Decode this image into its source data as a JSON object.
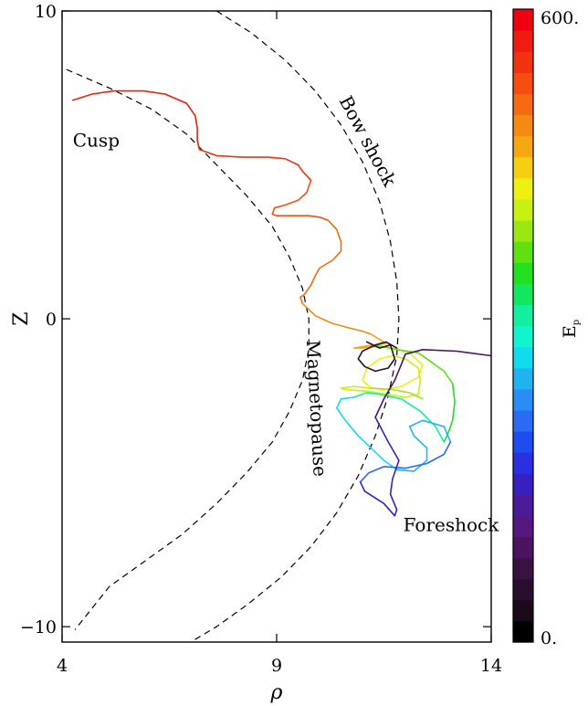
{
  "chart_data": {
    "type": "line",
    "xlabel": "ρ",
    "ylabel": "Z",
    "xlim": [
      4,
      14
    ],
    "ylim": [
      -10.5,
      10
    ],
    "xticks": [
      {
        "v": 4,
        "label": "4"
      },
      {
        "v": 9,
        "label": "9"
      },
      {
        "v": 14,
        "label": "14"
      }
    ],
    "yticks": [
      {
        "v": 10,
        "label": "10"
      },
      {
        "v": 0,
        "label": "0"
      },
      {
        "v": -10,
        "label": "−10"
      }
    ],
    "colorbar": {
      "label": "E",
      "label_subscript": "p",
      "min_label": "0.",
      "max_label": "600.",
      "colors": [
        "#000000",
        "#1a0a1a",
        "#2a0e2e",
        "#3a1242",
        "#4a1460",
        "#55187c",
        "#4a1a9a",
        "#3a1fc0",
        "#2a2fe0",
        "#1e4cf0",
        "#2a6af5",
        "#2a8cf5",
        "#1eb4f0",
        "#10dcf0",
        "#10f5d0",
        "#10f0a0",
        "#10e860",
        "#20e020",
        "#60e010",
        "#9ae810",
        "#c8f010",
        "#eef010",
        "#f5d010",
        "#f5a810",
        "#f58a10",
        "#f56c10",
        "#f54e10",
        "#f03210",
        "#f01c10",
        "#f00010"
      ]
    },
    "annotations": [
      {
        "text": "Cusp",
        "x": 4.25,
        "y": 5.6,
        "rotate": 0
      },
      {
        "text": "Bow shock",
        "x": 10.45,
        "y": 7.1,
        "rotate": 62
      },
      {
        "text": "Magnetopause",
        "x": 9.7,
        "y": -0.7,
        "rotate": 87
      },
      {
        "text": "Foreshock",
        "x": 11.95,
        "y": -6.9,
        "rotate": 0
      }
    ],
    "boundaries": [
      {
        "name": "Bow shock",
        "points": [
          [
            7.6,
            10
          ],
          [
            8.4,
            9.3
          ],
          [
            9.2,
            8.4
          ],
          [
            9.9,
            7.4
          ],
          [
            10.5,
            6.3
          ],
          [
            11.0,
            5.1
          ],
          [
            11.4,
            3.8
          ],
          [
            11.65,
            2.5
          ],
          [
            11.8,
            1.2
          ],
          [
            11.85,
            0
          ],
          [
            11.8,
            -1.2
          ],
          [
            11.6,
            -2.5
          ],
          [
            11.3,
            -3.8
          ],
          [
            10.9,
            -5.1
          ],
          [
            10.4,
            -6.3
          ],
          [
            9.8,
            -7.4
          ],
          [
            9.1,
            -8.4
          ],
          [
            8.3,
            -9.3
          ],
          [
            7.6,
            -10
          ],
          [
            7.0,
            -10.5
          ]
        ]
      },
      {
        "name": "Magnetopause",
        "points": [
          [
            4.1,
            8.1
          ],
          [
            5.1,
            7.5
          ],
          [
            6.1,
            6.8
          ],
          [
            6.9,
            6.0
          ],
          [
            7.6,
            5.0
          ],
          [
            8.3,
            4.0
          ],
          [
            8.9,
            3.0
          ],
          [
            9.3,
            2.0
          ],
          [
            9.6,
            1.0
          ],
          [
            9.75,
            0
          ],
          [
            9.75,
            -1.0
          ],
          [
            9.6,
            -2.0
          ],
          [
            9.3,
            -3.0
          ],
          [
            8.9,
            -4.0
          ],
          [
            8.3,
            -5.0
          ],
          [
            7.6,
            -6.0
          ],
          [
            6.8,
            -7.0
          ],
          [
            6.0,
            -7.8
          ],
          [
            5.1,
            -8.7
          ],
          [
            4.3,
            -10.1
          ]
        ]
      }
    ],
    "trajectory": [
      {
        "color": "#f01c10",
        "points": [
          [
            4.25,
            7.1
          ],
          [
            4.7,
            7.3
          ],
          [
            5.2,
            7.4
          ],
          [
            5.9,
            7.4
          ],
          [
            6.4,
            7.3
          ],
          [
            6.9,
            7.0
          ],
          [
            7.1,
            6.6
          ],
          [
            7.15,
            6.2
          ],
          [
            7.15,
            5.8
          ],
          [
            7.2,
            5.5
          ]
        ]
      },
      {
        "color": "#f03210",
        "points": [
          [
            7.2,
            5.5
          ],
          [
            7.6,
            5.3
          ],
          [
            8.2,
            5.25
          ],
          [
            8.8,
            5.25
          ],
          [
            9.2,
            5.2
          ],
          [
            9.5,
            5.0
          ],
          [
            9.6,
            4.8
          ],
          [
            9.8,
            4.5
          ]
        ]
      },
      {
        "color": "#f54e10",
        "points": [
          [
            9.8,
            4.5
          ],
          [
            9.7,
            4.1
          ],
          [
            9.5,
            3.85
          ],
          [
            9.2,
            3.7
          ],
          [
            8.95,
            3.6
          ],
          [
            8.9,
            3.4
          ],
          [
            9.0,
            3.35
          ],
          [
            9.35,
            3.35
          ],
          [
            9.75,
            3.35
          ],
          [
            10.0,
            3.3
          ],
          [
            10.2,
            3.2
          ]
        ]
      },
      {
        "color": "#f56c10",
        "points": [
          [
            10.2,
            3.2
          ],
          [
            10.4,
            2.9
          ],
          [
            10.5,
            2.5
          ],
          [
            10.5,
            2.2
          ],
          [
            10.3,
            1.9
          ],
          [
            10.0,
            1.65
          ],
          [
            9.9,
            1.4
          ],
          [
            9.8,
            1.1
          ],
          [
            9.65,
            0.8
          ],
          [
            9.55,
            0.7
          ],
          [
            9.6,
            0.5
          ]
        ]
      },
      {
        "color": "#f58a10",
        "points": [
          [
            9.6,
            0.5
          ],
          [
            9.9,
            0.1
          ],
          [
            10.3,
            -0.15
          ],
          [
            10.7,
            -0.3
          ],
          [
            11.0,
            -0.4
          ],
          [
            11.2,
            -0.5
          ]
        ]
      },
      {
        "color": "#f5a810",
        "points": [
          [
            11.2,
            -0.5
          ],
          [
            11.55,
            -0.8
          ],
          [
            11.3,
            -0.85
          ],
          [
            11.0,
            -0.9
          ],
          [
            10.8,
            -0.95
          ],
          [
            11.0,
            -0.95
          ],
          [
            11.3,
            -0.9
          ]
        ]
      },
      {
        "color": "#eef010",
        "points": [
          [
            11.3,
            -0.9
          ],
          [
            11.7,
            -0.95
          ],
          [
            12.1,
            -1.1
          ],
          [
            12.4,
            -1.5
          ],
          [
            12.3,
            -1.9
          ],
          [
            11.9,
            -2.2
          ],
          [
            11.5,
            -2.3
          ],
          [
            11.2,
            -2.25
          ],
          [
            11.0,
            -2.0
          ],
          [
            11.1,
            -1.6
          ],
          [
            11.4,
            -1.3
          ],
          [
            11.7,
            -1.2
          ]
        ]
      },
      {
        "color": "#c8f010",
        "points": [
          [
            11.7,
            -1.2
          ],
          [
            12.0,
            -1.3
          ],
          [
            12.3,
            -1.6
          ],
          [
            12.35,
            -2.0
          ],
          [
            12.3,
            -2.45
          ],
          [
            12.0,
            -2.55
          ],
          [
            11.6,
            -2.45
          ],
          [
            11.1,
            -2.35
          ],
          [
            10.6,
            -2.3
          ],
          [
            10.5,
            -2.25
          ],
          [
            10.8,
            -2.2
          ],
          [
            11.2,
            -2.25
          ]
        ]
      },
      {
        "color": "#9ae810",
        "points": [
          [
            11.2,
            -2.25
          ],
          [
            11.7,
            -2.3
          ],
          [
            12.1,
            -2.4
          ],
          [
            12.4,
            -2.6
          ]
        ]
      },
      {
        "color": "#60e010",
        "points": [
          [
            11.3,
            -0.85
          ],
          [
            11.8,
            -1.0
          ],
          [
            12.3,
            -1.1
          ],
          [
            12.6,
            -1.4
          ],
          [
            12.9,
            -1.7
          ],
          [
            13.1,
            -2.1
          ]
        ]
      },
      {
        "color": "#20e020",
        "points": [
          [
            13.1,
            -2.1
          ],
          [
            13.15,
            -2.7
          ],
          [
            13.1,
            -3.3
          ],
          [
            13.0,
            -3.7
          ]
        ]
      },
      {
        "color": "#10e860",
        "points": [
          [
            13.0,
            -3.7
          ],
          [
            12.9,
            -4.0
          ]
        ]
      },
      {
        "color": "#10f0a0",
        "points": [
          [
            12.9,
            -4.0
          ],
          [
            12.7,
            -3.5
          ],
          [
            12.35,
            -3.0
          ],
          [
            11.9,
            -2.6
          ],
          [
            11.4,
            -2.45
          ],
          [
            11.1,
            -2.4
          ],
          [
            10.8,
            -2.55
          ]
        ]
      },
      {
        "color": "#10dcf0",
        "points": [
          [
            10.8,
            -2.55
          ],
          [
            10.5,
            -2.6
          ],
          [
            10.4,
            -2.9
          ],
          [
            10.6,
            -3.3
          ],
          [
            10.9,
            -3.8
          ],
          [
            11.2,
            -4.2
          ],
          [
            11.5,
            -4.6
          ],
          [
            11.8,
            -4.9
          ]
        ]
      },
      {
        "color": "#1eb4f0",
        "points": [
          [
            11.8,
            -4.9
          ],
          [
            12.2,
            -4.95
          ],
          [
            12.5,
            -4.6
          ],
          [
            12.5,
            -4.2
          ],
          [
            12.2,
            -3.8
          ],
          [
            12.1,
            -3.5
          ],
          [
            12.4,
            -3.3
          ],
          [
            12.9,
            -3.5
          ],
          [
            13.05,
            -4.0
          ]
        ]
      },
      {
        "color": "#2a6af5",
        "points": [
          [
            13.05,
            -4.0
          ],
          [
            12.9,
            -4.4
          ],
          [
            12.5,
            -4.7
          ],
          [
            12.0,
            -4.85
          ],
          [
            11.5,
            -4.8
          ],
          [
            11.15,
            -5.0
          ],
          [
            10.95,
            -5.3
          ]
        ]
      },
      {
        "color": "#3a1fc0",
        "points": [
          [
            10.95,
            -5.3
          ],
          [
            11.05,
            -5.6
          ],
          [
            11.5,
            -6.0
          ],
          [
            11.75,
            -6.4
          ],
          [
            11.8,
            -6.2
          ],
          [
            11.65,
            -5.7
          ],
          [
            11.7,
            -5.2
          ],
          [
            11.85,
            -4.6
          ],
          [
            11.6,
            -4.0
          ],
          [
            11.3,
            -3.2
          ]
        ]
      },
      {
        "color": "#4a1460",
        "points": [
          [
            11.3,
            -3.2
          ],
          [
            11.5,
            -2.6
          ],
          [
            11.75,
            -2.0
          ],
          [
            11.9,
            -1.5
          ],
          [
            12.0,
            -1.15
          ],
          [
            12.4,
            -1.0
          ],
          [
            13.2,
            -1.05
          ],
          [
            14.0,
            -1.2
          ]
        ]
      },
      {
        "color": "#2a0e2e",
        "points": [
          [
            11.1,
            -0.75
          ],
          [
            11.4,
            -0.95
          ],
          [
            11.65,
            -0.85
          ],
          [
            11.75,
            -1.3
          ],
          [
            11.6,
            -1.6
          ],
          [
            11.3,
            -1.7
          ],
          [
            11.05,
            -1.55
          ],
          [
            10.9,
            -1.3
          ],
          [
            11.0,
            -1.05
          ],
          [
            11.3,
            -0.85
          ],
          [
            11.55,
            -0.75
          ],
          [
            11.8,
            -0.95
          ]
        ]
      }
    ]
  }
}
